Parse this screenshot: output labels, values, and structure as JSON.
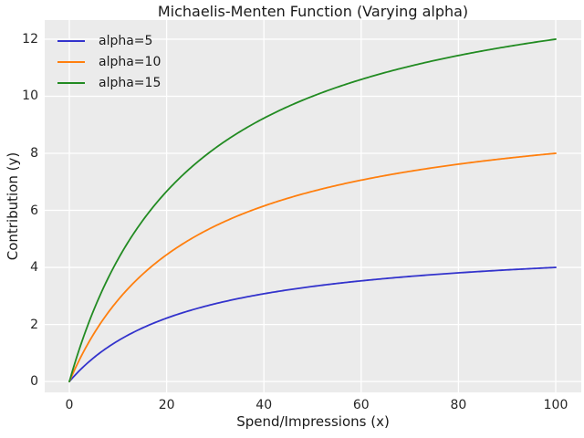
{
  "figure": {
    "background": "#ffffff",
    "plot_background": "#ebebeb",
    "grid_color": "#ffffff",
    "text_color": "#262626"
  },
  "chart_data": {
    "type": "line",
    "title": "Michaelis-Menten Function (Varying alpha)",
    "xlabel": "Spend/Impressions (x)",
    "ylabel": "Contribution (y)",
    "x_ticks": [
      0,
      20,
      40,
      60,
      80,
      100
    ],
    "y_ticks": [
      0,
      2,
      4,
      6,
      8,
      10,
      12
    ],
    "xlim": [
      -5.07,
      105.25
    ],
    "ylim": [
      -0.38,
      12.67
    ],
    "grid": true,
    "legend_position": "upper left",
    "legend_frame": false,
    "function": "y = alpha * x / (lambda + x)",
    "lambda": 25,
    "x_range": [
      0,
      100
    ],
    "series": [
      {
        "name": "alpha=5",
        "alpha": 5,
        "color": "#3333cc",
        "y_at_x0": 0,
        "y_at_x20": 2.22,
        "y_at_x50": 3.33,
        "y_at_x100": 4.0
      },
      {
        "name": "alpha=10",
        "alpha": 10,
        "color": "#ff7f0e",
        "y_at_x0": 0,
        "y_at_x20": 4.44,
        "y_at_x50": 6.67,
        "y_at_x100": 8.0
      },
      {
        "name": "alpha=15",
        "alpha": 15,
        "color": "#228b22",
        "y_at_x0": 0,
        "y_at_x20": 6.67,
        "y_at_x50": 10.0,
        "y_at_x100": 12.0
      }
    ]
  }
}
